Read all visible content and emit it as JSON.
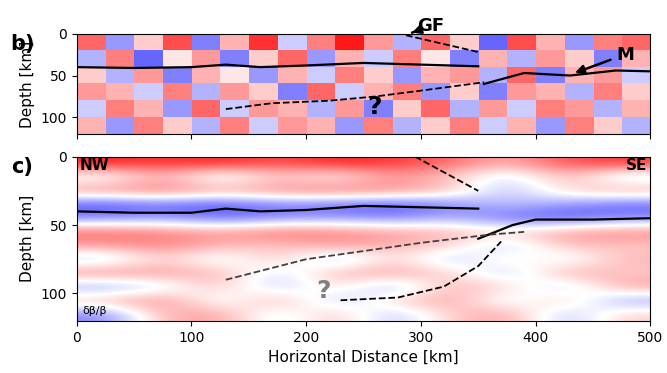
{
  "chart_data": [
    {
      "type": "heatmap",
      "panel_label": "b)",
      "ylabel": "Depth [km]",
      "xlim": [
        0,
        500
      ],
      "ylim": [
        120,
        0
      ],
      "xticks": [
        0,
        100,
        200,
        300,
        400,
        500
      ],
      "yticks": [
        0,
        50,
        100
      ],
      "tick_labels": "y",
      "clim": [
        -1,
        1
      ],
      "cells": [
        [
          0.6,
          -0.4,
          0.2,
          0.7,
          -0.5,
          0.3,
          0.8,
          -0.2,
          0.5,
          0.9,
          0.4,
          -0.3,
          0.6,
          0.2,
          -0.6,
          0.7,
          0.3,
          -0.4,
          0.5,
          0.6
        ],
        [
          -0.3,
          0.5,
          -0.6,
          0.1,
          0.4,
          -0.5,
          0.2,
          0.6,
          -0.4,
          0.3,
          -0.2,
          0.5,
          0.1,
          -0.5,
          0.3,
          -0.3,
          0.4,
          0.2,
          -0.5,
          0.3
        ],
        [
          0.2,
          -0.3,
          0.4,
          -0.5,
          0.3,
          0.1,
          -0.4,
          0.3,
          -0.2,
          0.5,
          0.2,
          -0.4,
          0.3,
          0.4,
          -0.3,
          0.6,
          -0.5,
          0.3,
          0.4,
          -0.2
        ],
        [
          0.4,
          0.3,
          -0.2,
          0.5,
          -0.3,
          0.4,
          0.2,
          -0.5,
          0.6,
          -0.2,
          0.3,
          0.5,
          -0.4,
          0.2,
          -0.5,
          0.4,
          0.3,
          -0.3,
          0.5,
          0.2
        ],
        [
          -0.2,
          0.5,
          0.3,
          -0.4,
          0.6,
          -0.2,
          0.4,
          0.3,
          -0.3,
          0.4,
          -0.5,
          0.2,
          0.6,
          -0.3,
          0.4,
          -0.2,
          0.5,
          0.4,
          -0.3,
          0.3
        ],
        [
          0.3,
          -0.4,
          0.5,
          0.2,
          -0.3,
          0.5,
          -0.2,
          0.4,
          0.3,
          -0.4,
          0.5,
          -0.3,
          0.2,
          0.5,
          -0.2,
          0.3,
          -0.4,
          0.5,
          0.2,
          -0.3
        ]
      ],
      "series": [
        {
          "x": [
            0,
            50,
            100,
            130,
            160,
            200,
            250,
            300,
            350
          ],
          "values": [
            40,
            41,
            40,
            37,
            40,
            38,
            35,
            37,
            39
          ],
          "color": "#000000",
          "line_style": "solid"
        },
        {
          "x": [
            355,
            390,
            430,
            470,
            500
          ],
          "values": [
            60,
            47,
            50,
            44,
            45
          ],
          "color": "#000000",
          "line_style": "solid"
        },
        {
          "x": [
            287,
            350
          ],
          "values": [
            2,
            22
          ],
          "color": "#000000",
          "line_style": "dashed"
        },
        {
          "x": [
            130,
            170,
            220,
            260,
            300,
            355
          ],
          "values": [
            90,
            83,
            80,
            75,
            68,
            58
          ],
          "color": "#000000",
          "line_style": "dashed"
        }
      ],
      "annotations": [
        {
          "text": "GF",
          "x": 297,
          "y": -9,
          "arrow_to": [
            290,
            0
          ],
          "color": "#000000"
        },
        {
          "text": "M",
          "x": 470,
          "y": 25,
          "arrow_to": [
            432,
            48
          ],
          "color": "#000000"
        },
        {
          "text": "?",
          "x": 260,
          "y": 88,
          "color": "#000000"
        }
      ]
    },
    {
      "type": "image",
      "panel_label": "c)",
      "ylabel": "Depth [km]",
      "xlabel": "Horizontal Distance [km]",
      "xlim": [
        0,
        500
      ],
      "ylim": [
        120,
        0
      ],
      "xticks": [
        0,
        100,
        200,
        300,
        400,
        500
      ],
      "yticks": [
        0,
        50,
        100
      ],
      "clim": [
        -1,
        1
      ],
      "corner_labels": [
        "NW",
        "SE"
      ],
      "colormap_label": "δβ/β",
      "cells": [
        [
          0.9,
          0.8,
          0.9,
          0.7,
          0.9,
          0.8,
          0.6,
          0.3,
          0.7,
          0.8
        ],
        [
          -0.2,
          0.3,
          -0.3,
          0.2,
          -0.1,
          0.4,
          0.2,
          -0.2,
          0.3,
          -0.3
        ],
        [
          0.5,
          0.6,
          0.4,
          0.5,
          0.6,
          0.5,
          0.3,
          -0.3,
          0.2,
          0.4
        ],
        [
          -0.7,
          -0.6,
          -0.7,
          -0.5,
          -0.6,
          -0.7,
          -0.5,
          -0.2,
          -0.4,
          -0.6
        ],
        [
          -0.5,
          -0.4,
          -0.6,
          -0.5,
          -0.4,
          -0.5,
          -0.3,
          -0.6,
          -0.7,
          -0.5
        ],
        [
          0.6,
          0.5,
          0.4,
          0.6,
          0.5,
          0.4,
          0.3,
          0.2,
          0.4,
          0.5
        ],
        [
          0.4,
          0.5,
          0.3,
          0.2,
          0.4,
          0.3,
          0.2,
          -0.3,
          0.3,
          0.2
        ],
        [
          -0.3,
          0.2,
          -0.2,
          0.3,
          -0.4,
          0.2,
          -0.3,
          0.2,
          -0.2,
          0.3
        ],
        [
          0.5,
          0.4,
          0.3,
          -0.2,
          0.3,
          0.4,
          0.2,
          -0.3,
          0.4,
          0.2
        ],
        [
          -0.4,
          -0.2,
          0.3,
          -0.3,
          0.2,
          -0.4,
          0.3,
          0.2,
          -0.3,
          0.4
        ],
        [
          0.3,
          0.5,
          -0.2,
          0.4,
          -0.3,
          0.2,
          0.4,
          -0.2,
          0.3,
          -0.4
        ],
        [
          -0.5,
          0.3,
          0.4,
          -0.2,
          0.3,
          -0.3,
          0.2,
          0.4,
          -0.3,
          0.2
        ]
      ],
      "series": [
        {
          "x": [
            0,
            50,
            100,
            130,
            160,
            200,
            250,
            300,
            350
          ],
          "values": [
            40,
            41,
            41,
            38,
            40,
            39,
            36,
            37,
            38
          ],
          "color": "#000000",
          "line_style": "solid"
        },
        {
          "x": [
            350,
            380,
            400,
            450,
            500
          ],
          "values": [
            60,
            50,
            46,
            46,
            45
          ],
          "color": "#000000",
          "line_style": "solid"
        },
        {
          "x": [
            295,
            350
          ],
          "values": [
            0,
            25
          ],
          "color": "#000000",
          "line_style": "dashed"
        },
        {
          "x": [
            130,
            200,
            300,
            360,
            390
          ],
          "values": [
            90,
            75,
            63,
            57,
            55
          ],
          "color": "#404040",
          "line_style": "dashed"
        },
        {
          "x": [
            230,
            280,
            320,
            350,
            370
          ],
          "values": [
            105,
            103,
            95,
            80,
            62
          ],
          "color": "#000000",
          "line_style": "dashed"
        }
      ],
      "annotations": [
        {
          "text": "?",
          "x": 215,
          "y": 98,
          "color": "#808080"
        }
      ]
    }
  ]
}
